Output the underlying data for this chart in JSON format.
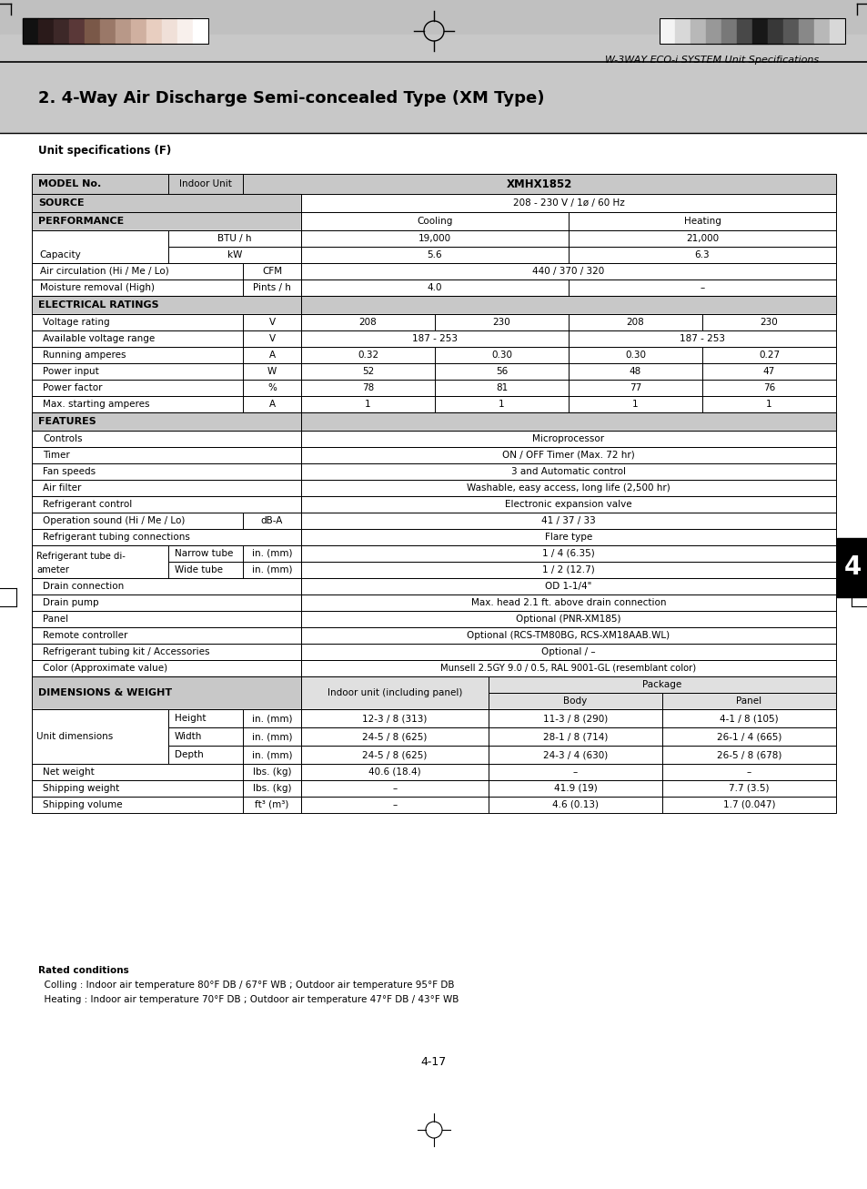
{
  "page_title": "W-3WAY ECO-i SYSTEM Unit Specifications",
  "section_title": "2. 4-Way Air Discharge Semi-concealed Type (XM Type)",
  "table_title": "Unit specifications (F)",
  "page_number": "4-17",
  "tab_number": "4",
  "footer_line1": "Rated conditions",
  "footer_line2": "  Colling : Indoor air temperature 80°F DB / 67°F WB ; Outdoor air temperature 95°F DB",
  "footer_line3": "  Heating : Indoor air temperature 70°F DB ; Outdoor air temperature 47°F DB / 43°F WB",
  "colors_left": [
    "#111111",
    "#2a1a1a",
    "#3d2828",
    "#5a3838",
    "#7a5848",
    "#9a7868",
    "#b89888",
    "#d0b0a0",
    "#e8cec0",
    "#f0e0d8",
    "#f8f0ec",
    "#ffffff"
  ],
  "colors_right": [
    "#f4f4f4",
    "#d8d8d8",
    "#b8b8b8",
    "#989898",
    "#787878",
    "#484848",
    "#181818",
    "#383838",
    "#585858",
    "#888888",
    "#b8b8b8",
    "#d8d8d8"
  ],
  "gray1": "#c8c8c8",
  "gray2": "#e0e0e0",
  "white": "#ffffff"
}
